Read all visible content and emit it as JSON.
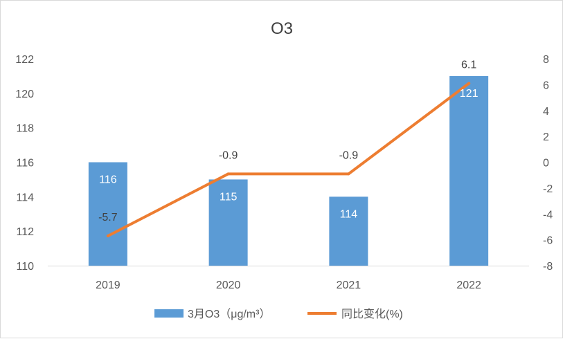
{
  "chart_data": {
    "type": "bar+line",
    "title": "O3",
    "categories": [
      "2019",
      "2020",
      "2021",
      "2022"
    ],
    "series": [
      {
        "name": "3月O3（μg/m³）",
        "type": "bar",
        "axis": "left",
        "values": [
          116,
          115,
          114,
          121
        ],
        "labels": [
          "116",
          "115",
          "114",
          "121"
        ],
        "color": "#5B9BD5"
      },
      {
        "name": "同比变化(%)",
        "type": "line",
        "axis": "right",
        "values": [
          -5.7,
          -0.9,
          -0.9,
          6.1
        ],
        "labels": [
          "-5.7",
          "-0.9",
          "-0.9",
          "6.1"
        ],
        "color": "#ED7D31"
      }
    ],
    "y_left": {
      "min": 110,
      "max": 122,
      "step": 2,
      "ticks": [
        "110",
        "112",
        "114",
        "116",
        "118",
        "120",
        "122"
      ]
    },
    "y_right": {
      "min": -8,
      "max": 8,
      "step": 2,
      "ticks": [
        "-8",
        "-6",
        "-4",
        "-2",
        "0",
        "2",
        "4",
        "6",
        "8"
      ]
    },
    "grid": false,
    "legend_position": "bottom"
  }
}
